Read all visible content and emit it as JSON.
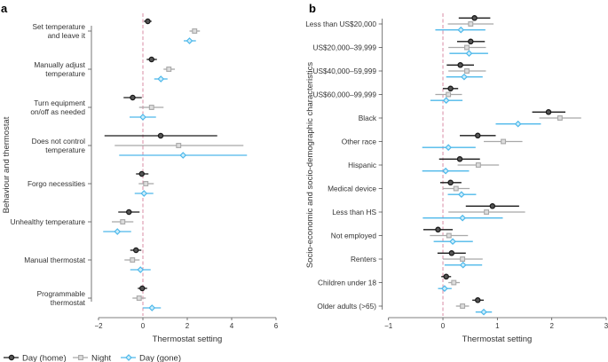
{
  "series": [
    {
      "name": "Day (home)",
      "color": "#1a1a1a",
      "marker": "circle"
    },
    {
      "name": "Night",
      "color": "#a8a8a8",
      "marker": "square"
    },
    {
      "name": "Day (gone)",
      "color": "#4db8ea",
      "marker": "diamond"
    }
  ],
  "reference_line": {
    "x": 0,
    "color": "#d98ca6",
    "style": "dashed"
  },
  "chart_data": [
    {
      "panel": "a",
      "type": "forest",
      "xlabel": "Thermostat setting",
      "ylabel": "Behaviour and thermostat",
      "xlim": [
        -2,
        6
      ],
      "xticks": [
        -2,
        0,
        2,
        4,
        6
      ],
      "categories": [
        "Set temperature\nand leave it",
        "Manually adjust\ntemperature",
        "Turn equipment\non/off as needed",
        "Does not control\ntemperature",
        "Forgo necessities",
        "Unhealthy temperature",
        "Manual thermostat",
        "Programmable\nthermostat"
      ],
      "values": [
        [
          [
            0.22,
            0.05,
            0.39
          ],
          [
            2.33,
            2.1,
            2.57
          ],
          [
            2.1,
            1.84,
            2.39
          ]
        ],
        [
          [
            0.39,
            0.17,
            0.63
          ],
          [
            1.17,
            0.93,
            1.44
          ],
          [
            0.81,
            0.51,
            1.11
          ]
        ],
        [
          [
            -0.46,
            -0.87,
            -0.05
          ],
          [
            0.39,
            -0.17,
            0.93
          ],
          [
            0.0,
            -0.6,
            0.59
          ]
        ],
        [
          [
            0.8,
            -1.73,
            3.35
          ],
          [
            1.61,
            -1.27,
            4.53
          ],
          [
            1.81,
            -1.07,
            4.69
          ]
        ],
        [
          [
            -0.05,
            -0.31,
            0.25
          ],
          [
            0.13,
            -0.19,
            0.49
          ],
          [
            0.05,
            -0.37,
            0.47
          ]
        ],
        [
          [
            -0.63,
            -1.11,
            -0.15
          ],
          [
            -0.91,
            -1.4,
            -0.43
          ],
          [
            -1.15,
            -1.79,
            -0.53
          ]
        ],
        [
          [
            -0.31,
            -0.57,
            -0.07
          ],
          [
            -0.47,
            -0.83,
            -0.15
          ],
          [
            -0.11,
            -0.57,
            0.35
          ]
        ],
        [
          [
            -0.03,
            -0.23,
            0.19
          ],
          [
            -0.17,
            -0.47,
            0.13
          ],
          [
            0.41,
            0.0,
            0.81
          ]
        ]
      ]
    },
    {
      "panel": "b",
      "type": "forest",
      "xlabel": "Thermostat setting",
      "ylabel": "Socio-economic and socio-demographic characteristics",
      "xlim": [
        -1,
        3
      ],
      "xticks": [
        -1,
        0,
        1,
        2,
        3
      ],
      "categories": [
        "Less than US$20,000",
        "US$20,000–39,999",
        "US$40,000–59,999",
        "US$60,000–99,999",
        "Black",
        "Other race",
        "Hispanic",
        "Medical device",
        "Less than HS",
        "Not employed",
        "Renters",
        "Children under 18",
        "Older adults (>65)"
      ],
      "values": [
        [
          [
            0.58,
            0.29,
            0.87
          ],
          [
            0.51,
            0.09,
            0.93
          ],
          [
            0.33,
            -0.14,
            0.78
          ]
        ],
        [
          [
            0.51,
            0.26,
            0.77
          ],
          [
            0.44,
            0.1,
            0.79
          ],
          [
            0.48,
            0.12,
            0.83
          ]
        ],
        [
          [
            0.32,
            0.07,
            0.57
          ],
          [
            0.44,
            0.1,
            0.79
          ],
          [
            0.39,
            0.06,
            0.73
          ]
        ],
        [
          [
            0.14,
            0.0,
            0.28
          ],
          [
            0.1,
            -0.14,
            0.35
          ],
          [
            0.06,
            -0.23,
            0.36
          ]
        ],
        [
          [
            1.94,
            1.64,
            2.25
          ],
          [
            2.15,
            1.77,
            2.54
          ],
          [
            1.38,
            0.97,
            1.8
          ]
        ],
        [
          [
            0.64,
            0.31,
            0.97
          ],
          [
            1.11,
            0.75,
            1.46
          ],
          [
            0.1,
            -0.38,
            0.6
          ]
        ],
        [
          [
            0.31,
            -0.07,
            0.68
          ],
          [
            0.65,
            0.27,
            1.03
          ],
          [
            0.05,
            -0.38,
            0.48
          ]
        ],
        [
          [
            0.14,
            -0.05,
            0.34
          ],
          [
            0.24,
            0.0,
            0.49
          ],
          [
            0.34,
            0.09,
            0.61
          ]
        ],
        [
          [
            0.91,
            0.42,
            1.4
          ],
          [
            0.8,
            0.1,
            1.51
          ],
          [
            0.36,
            -0.37,
            1.1
          ]
        ],
        [
          [
            -0.09,
            -0.36,
            0.18
          ],
          [
            0.11,
            -0.24,
            0.46
          ],
          [
            0.18,
            -0.17,
            0.55
          ]
        ],
        [
          [
            0.16,
            -0.1,
            0.42
          ],
          [
            0.36,
            0.0,
            0.73
          ],
          [
            0.37,
            0.03,
            0.72
          ]
        ],
        [
          [
            0.06,
            -0.03,
            0.15
          ],
          [
            0.2,
            0.1,
            0.31
          ],
          [
            0.03,
            -0.09,
            0.16
          ]
        ],
        [
          [
            0.64,
            0.54,
            0.75
          ],
          [
            0.36,
            0.24,
            0.48
          ],
          [
            0.75,
            0.6,
            0.9
          ]
        ]
      ]
    }
  ]
}
